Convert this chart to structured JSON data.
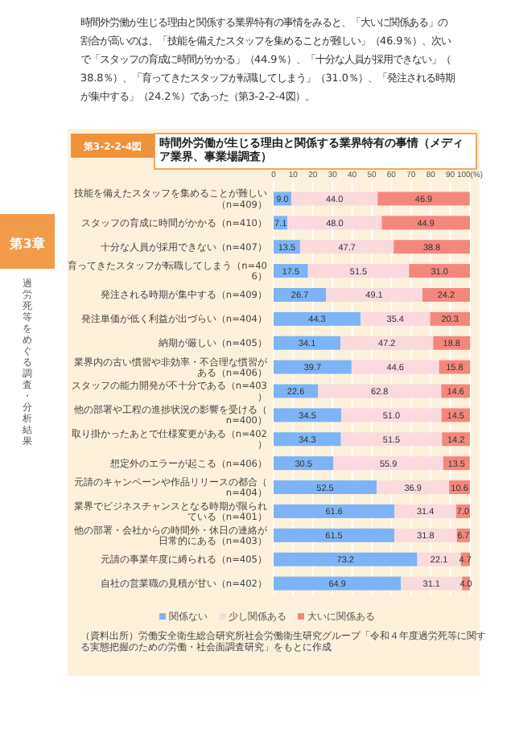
{
  "chart_data": {
    "type": "bar",
    "orientation": "horizontal",
    "stacked": true,
    "grid": "x",
    "legend": "bottom",
    "title": "時間外労働が生じる理由と関係する業界特有の事情（メディア業界、事業場調査）",
    "subtitle": "第3-2-2-4図",
    "categories": [
      "技能を備えたスタッフを集めることが難しい（n=409）",
      "スタッフの育成に時間がかかる（n=410）",
      "十分な人員が採用できない（n=407）",
      "育ってきたスタッフが転職してしまう（n=406）",
      "発注される時期が集中する（n=409）",
      "発注単価が低く利益が出づらい（n=404）",
      "納期が厳しい（n=405）",
      "業界内の古い慣習や非効率・不合理な慣習がある（n=406）",
      "スタッフの能力開発が不十分である（n=403）",
      "他の部署や工程の進捗状況の影響を受ける（n=400）",
      "取り掛かったあとで仕様変更がある（n=402）",
      "想定外のエラーが起こる（n=406）",
      "元請のキャンペーンや作品リリースの都合（n=404）",
      "業界でビジネスチャンスとなる時期が限られている（n=401）",
      "他の部署・会社からの時間外・休日の連絡が日常的にある（n=403）",
      "元請の事業年度に縛られる（n=405）",
      "自社の営業職の見積が甘い（n=402）"
    ],
    "series": [
      {
        "name": "関係ない",
        "color": "#7db4f5",
        "values": [
          9.0,
          7.1,
          13.5,
          17.5,
          26.7,
          44.3,
          34.1,
          39.7,
          22.6,
          34.5,
          34.3,
          30.5,
          52.5,
          61.6,
          61.5,
          73.2,
          64.9
        ],
        "value_labels": [
          "9.0",
          "7.1",
          "13.5",
          "17.5",
          "26.7",
          "44.3",
          "34.1",
          "39.7",
          "22.6",
          "34.5",
          "34.3",
          "30.5",
          "52.5",
          "61.6",
          "61.5",
          "73.2",
          "64.9"
        ]
      },
      {
        "name": "少し関係ある",
        "color": "#fadadd",
        "values": [
          44.0,
          48.0,
          47.7,
          51.5,
          49.1,
          35.4,
          47.2,
          44.6,
          62.8,
          51.0,
          51.5,
          55.9,
          36.9,
          31.4,
          31.8,
          22.1,
          31.1
        ],
        "value_labels": [
          "44.0",
          "48.0",
          "47.7",
          "51.5",
          "49.1",
          "35.4",
          "47.2",
          "44.6",
          "62.8",
          "51.0",
          "51.5",
          "55.9",
          "36.9",
          "31.4",
          "31.8",
          "22.1",
          "31.1"
        ]
      },
      {
        "name": "大いに関係ある",
        "color": "#f4877c",
        "values": [
          46.9,
          44.9,
          38.8,
          31.0,
          24.2,
          20.3,
          18.8,
          15.8,
          14.6,
          14.5,
          14.2,
          13.5,
          10.6,
          7.0,
          6.7,
          4.7,
          4.0
        ],
        "value_labels": [
          "46.9",
          "44.9",
          "38.8",
          "31.0",
          "24.2",
          "20.3",
          "18.8",
          "15.8",
          "14.6",
          "14.5",
          "14.2",
          "13.5",
          "10.6",
          "7.0",
          "6.7",
          "4.7",
          "4.0"
        ]
      }
    ],
    "xlim": [
      0,
      100
    ],
    "xticks": [
      0,
      10,
      20,
      30,
      40,
      50,
      60,
      70,
      80,
      90,
      {
        "value": 100,
        "label": "100(%)"
      }
    ],
    "annotations": [
      "時間外労働が生じる理由と関係する業界特有の事情をみると、「大いに関係ある」の割合が高いのは、「技能を備えたスタッフを集めることが難しい」（46.9％）、次いで「スタッフの育成に時間がかかる」（44.9％）、「十分な人員が採用できない」（38.8％）、「育ってきたスタッフが転職してしまう」（31.0％）、「発注される時期が集中する」（24.2％）であった（第3-2-2-4図）。",
      "第3章",
      "過労死等をめぐる調査・分析結果",
      "（資料出所）労働安全衛生総合研究所社会労働衛生研究グループ「令和４年度過労死等に関する実態把握のための労働・社会面調査研究」をもとに作成"
    ]
  }
}
